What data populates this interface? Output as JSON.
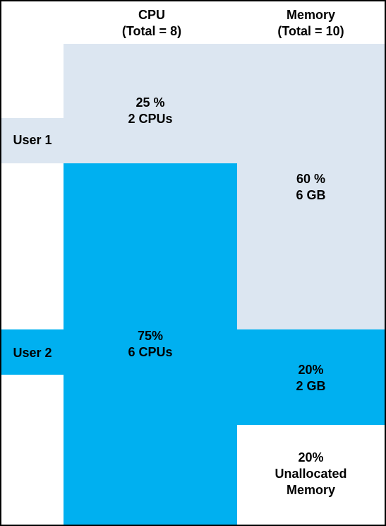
{
  "headers": {
    "cpu": {
      "line1": "CPU",
      "line2": "(Total = 8)"
    },
    "memory": {
      "line1": "Memory",
      "line2": "(Total = 10)"
    }
  },
  "users": {
    "user1": {
      "label": "User 1",
      "color": "#dce6f1"
    },
    "user2": {
      "label": "User 2",
      "color": "#00b0f0"
    }
  },
  "cpu": {
    "total": 8,
    "user1": {
      "percent_label": "25 %",
      "amount_label": "2 CPUs",
      "share": 0.25
    },
    "user2": {
      "percent_label": "75%",
      "amount_label": "6 CPUs",
      "share": 0.75
    }
  },
  "memory": {
    "total": 10,
    "user1": {
      "percent_label": "60 %",
      "amount_label": "6 GB",
      "share": 0.6
    },
    "user2": {
      "percent_label": "20%",
      "amount_label": "2 GB",
      "share": 0.2
    },
    "unallocated": {
      "percent_label": "20%",
      "line2": "Unallocated",
      "line3": "Memory",
      "share": 0.2,
      "color": "#ffffff"
    }
  }
}
